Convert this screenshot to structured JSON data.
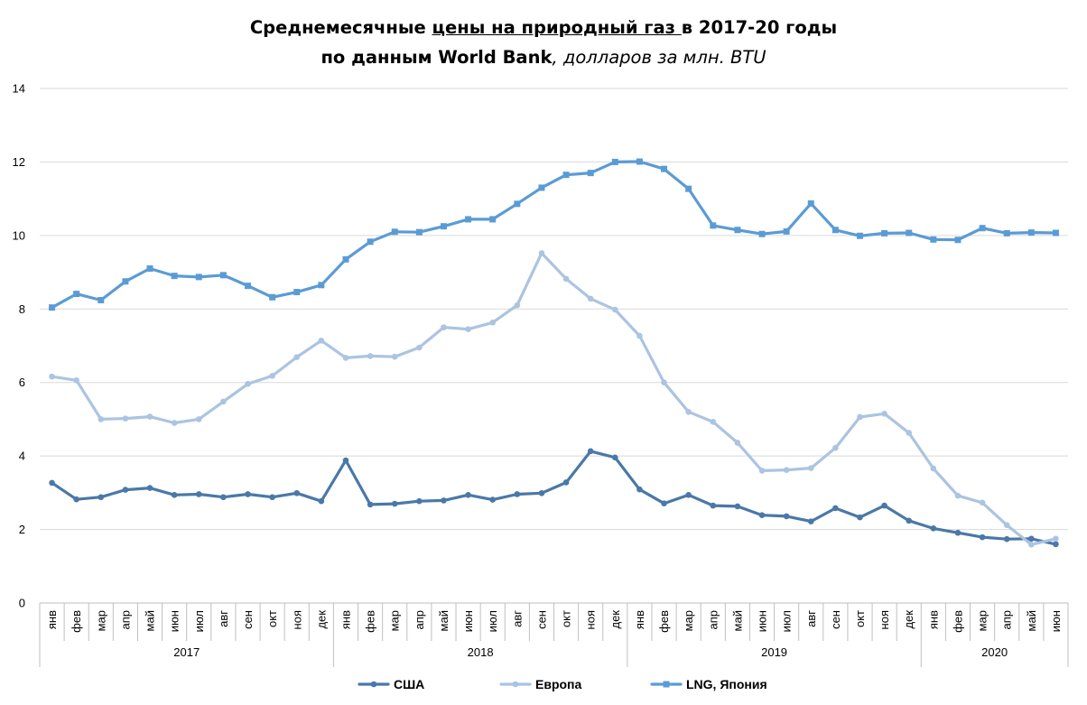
{
  "title": {
    "part1": "Среднемесячные ",
    "part2_underlined": "цены на природный газ ",
    "part3": "в 2017-20 годы",
    "line2_bold": "по данным World Bank",
    "line2_italic": ", долларов за млн. BTU"
  },
  "chart_data": {
    "type": "line",
    "title": "Среднемесячные цены на природный газ в 2017-20 годы по данным World Bank, долларов за млн. BTU",
    "xlabel": "",
    "ylabel": "",
    "ylim": [
      0,
      14
    ],
    "yticks": [
      0,
      2,
      4,
      6,
      8,
      10,
      12,
      14
    ],
    "grid": "horizontal",
    "legend": "bottom",
    "months": [
      "янв",
      "фев",
      "мар",
      "апр",
      "май",
      "июн",
      "июл",
      "авг",
      "сен",
      "окт",
      "ноя",
      "дек",
      "янв",
      "фев",
      "мар",
      "апр",
      "май",
      "июн",
      "июл",
      "авг",
      "сен",
      "окт",
      "ноя",
      "дек",
      "янв",
      "фев",
      "мар",
      "апр",
      "май",
      "июн",
      "июл",
      "авг",
      "сен",
      "окт",
      "ноя",
      "дек",
      "янв",
      "фев",
      "мар",
      "апр",
      "май",
      "июн"
    ],
    "years": [
      {
        "label": "2017",
        "start": 0,
        "count": 12
      },
      {
        "label": "2018",
        "start": 12,
        "count": 12
      },
      {
        "label": "2019",
        "start": 24,
        "count": 12
      },
      {
        "label": "2020",
        "start": 36,
        "count": 6
      }
    ],
    "series": [
      {
        "name": "США",
        "color": "#4A78A8",
        "marker": "circle",
        "values": [
          3.27,
          2.82,
          2.88,
          3.08,
          3.13,
          2.94,
          2.96,
          2.88,
          2.96,
          2.88,
          2.99,
          2.77,
          3.88,
          2.68,
          2.7,
          2.77,
          2.79,
          2.94,
          2.81,
          2.96,
          2.99,
          3.28,
          4.13,
          3.96,
          3.09,
          2.71,
          2.94,
          2.65,
          2.63,
          2.39,
          2.36,
          2.22,
          2.58,
          2.33,
          2.65,
          2.24,
          2.03,
          1.91,
          1.79,
          1.74,
          1.75,
          1.6
        ]
      },
      {
        "name": "Европа",
        "color": "#ABC4E1",
        "marker": "circle",
        "values": [
          6.16,
          6.06,
          5.0,
          5.02,
          5.07,
          4.9,
          5.0,
          5.48,
          5.96,
          6.18,
          6.69,
          7.14,
          6.67,
          6.72,
          6.7,
          6.95,
          7.5,
          7.45,
          7.63,
          8.1,
          9.52,
          8.82,
          8.28,
          7.98,
          7.27,
          6.0,
          5.2,
          4.93,
          4.36,
          3.6,
          3.62,
          3.67,
          4.22,
          5.06,
          5.15,
          4.63,
          3.66,
          2.92,
          2.73,
          2.12,
          1.59,
          1.75
        ]
      },
      {
        "name": "LNG, Япония",
        "color": "#5B9BD5",
        "marker": "square",
        "values": [
          8.04,
          8.41,
          8.24,
          8.75,
          9.1,
          8.9,
          8.87,
          8.92,
          8.63,
          8.32,
          8.46,
          8.65,
          9.35,
          9.83,
          10.1,
          10.09,
          10.25,
          10.44,
          10.44,
          10.86,
          11.3,
          11.65,
          11.7,
          12.0,
          12.01,
          11.81,
          11.27,
          10.27,
          10.15,
          10.04,
          10.11,
          10.87,
          10.15,
          9.99,
          10.06,
          10.07,
          9.89,
          9.88,
          10.2,
          10.06,
          10.08,
          10.07
        ]
      }
    ]
  }
}
